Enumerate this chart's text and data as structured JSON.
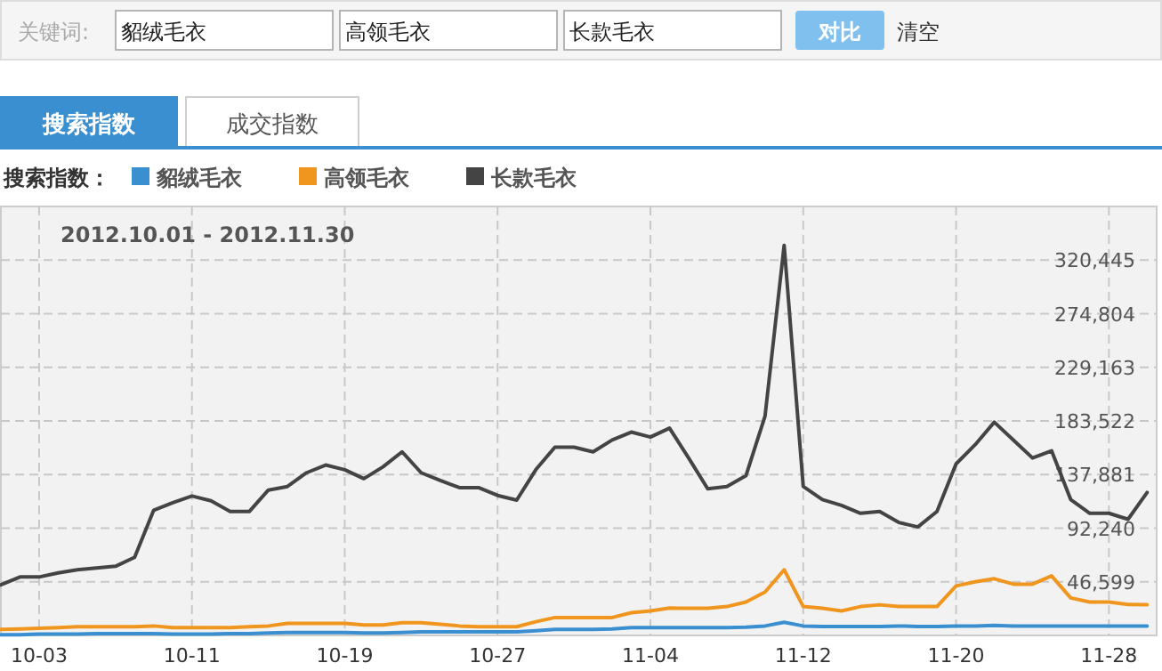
{
  "chart_data": {
    "type": "line",
    "title": "2012.10.01 - 2012.11.30",
    "legend_title": "搜索指数：",
    "annotations": [
      "关键词:",
      "对比",
      "清空",
      "搜索指数",
      "成交指数"
    ],
    "x": [
      "2012-10-01",
      "2012-10-02",
      "2012-10-03",
      "2012-10-04",
      "2012-10-05",
      "2012-10-06",
      "2012-10-07",
      "2012-10-08",
      "2012-10-09",
      "2012-10-10",
      "2012-10-11",
      "2012-10-12",
      "2012-10-13",
      "2012-10-14",
      "2012-10-15",
      "2012-10-16",
      "2012-10-17",
      "2012-10-18",
      "2012-10-19",
      "2012-10-20",
      "2012-10-21",
      "2012-10-22",
      "2012-10-23",
      "2012-10-24",
      "2012-10-25",
      "2012-10-26",
      "2012-10-27",
      "2012-10-28",
      "2012-10-29",
      "2012-10-30",
      "2012-10-31",
      "2012-11-01",
      "2012-11-02",
      "2012-11-03",
      "2012-11-04",
      "2012-11-05",
      "2012-11-06",
      "2012-11-07",
      "2012-11-08",
      "2012-11-09",
      "2012-11-10",
      "2012-11-11",
      "2012-11-12",
      "2012-11-13",
      "2012-11-14",
      "2012-11-15",
      "2012-11-16",
      "2012-11-17",
      "2012-11-18",
      "2012-11-19",
      "2012-11-20",
      "2012-11-21",
      "2012-11-22",
      "2012-11-23",
      "2012-11-24",
      "2012-11-25",
      "2012-11-26",
      "2012-11-27",
      "2012-11-28",
      "2012-11-29",
      "2012-11-30"
    ],
    "series": [
      {
        "name": "貂绒毛衣",
        "color": "#3a8fd0",
        "values": [
          1500,
          1500,
          2000,
          2000,
          2000,
          2500,
          2500,
          2500,
          2500,
          2000,
          2000,
          2000,
          2500,
          2500,
          3000,
          3500,
          3500,
          3500,
          3500,
          3000,
          3000,
          3500,
          4000,
          4000,
          4000,
          4000,
          4000,
          4000,
          5000,
          6000,
          6000,
          6000,
          6500,
          7500,
          7500,
          7500,
          7500,
          7500,
          7500,
          8000,
          9000,
          12100,
          9000,
          8500,
          8500,
          8500,
          8500,
          9000,
          8500,
          8500,
          9000,
          9000,
          9500,
          9000,
          9000,
          9000,
          9000,
          9000,
          9000,
          9000,
          9000
        ]
      },
      {
        "name": "高领毛衣",
        "color": "#f0961e",
        "values": [
          6000,
          6500,
          7000,
          7500,
          8300,
          8300,
          8300,
          8300,
          9000,
          7500,
          7500,
          7500,
          7500,
          8300,
          9000,
          11200,
          11200,
          11200,
          11200,
          9800,
          9800,
          11800,
          11800,
          10500,
          9000,
          8300,
          8300,
          8300,
          12600,
          16200,
          16200,
          16200,
          16200,
          20300,
          21800,
          24200,
          24000,
          24000,
          25500,
          29400,
          37900,
          56800,
          25500,
          24000,
          21800,
          25500,
          27000,
          25500,
          25500,
          25500,
          43100,
          46600,
          49200,
          44600,
          44600,
          51600,
          32900,
          29400,
          29400,
          27300,
          27000
        ]
      },
      {
        "name": "长款毛衣",
        "color": "#444444",
        "values": [
          44000,
          50700,
          50700,
          54200,
          56800,
          58300,
          59800,
          67400,
          107500,
          114000,
          119600,
          115500,
          106400,
          106400,
          124700,
          127700,
          139400,
          146000,
          142000,
          134400,
          144400,
          157200,
          139400,
          132900,
          126800,
          126800,
          120100,
          116100,
          142000,
          161200,
          161200,
          157200,
          167300,
          174000,
          169800,
          177400,
          152000,
          125700,
          127700,
          136900,
          187600,
          333000,
          127700,
          116600,
          111600,
          104900,
          106400,
          97100,
          93300,
          106400,
          147000,
          163300,
          182500,
          167300,
          152000,
          158100,
          116600,
          104900,
          104900,
          99800,
          122700
        ]
      }
    ],
    "xlim": [
      "2012-10-01",
      "2012-11-30T12:00"
    ],
    "xticks": [
      {
        "value": "2012-10-03",
        "label": "10-03"
      },
      {
        "value": "2012-10-11",
        "label": "10-11"
      },
      {
        "value": "2012-10-19",
        "label": "10-19"
      },
      {
        "value": "2012-10-27",
        "label": "10-27"
      },
      {
        "value": "2012-11-04",
        "label": "11-04"
      },
      {
        "value": "2012-11-12",
        "label": "11-12"
      },
      {
        "value": "2012-11-20",
        "label": "11-20"
      },
      {
        "value": "2012-11-28",
        "label": "11-28"
      }
    ],
    "ylim": [
      958,
      366086
    ],
    "yticks": [
      {
        "value": 46599,
        "label": "46,599"
      },
      {
        "value": 92240,
        "label": "92,240"
      },
      {
        "value": 137881,
        "label": "137,881"
      },
      {
        "value": 183522,
        "label": "183,522"
      },
      {
        "value": 229163,
        "label": "229,163"
      },
      {
        "value": 274804,
        "label": "274,804"
      },
      {
        "value": 320445,
        "label": "320,445"
      }
    ],
    "grid": true,
    "legend": "top left",
    "marker": "none",
    "line_style": "solid"
  }
}
